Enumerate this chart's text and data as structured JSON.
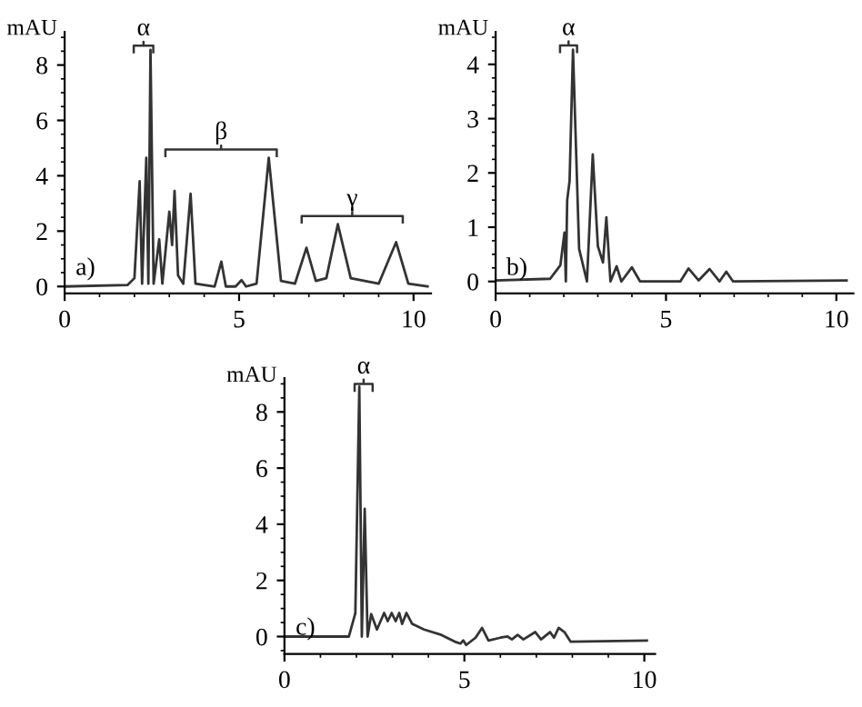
{
  "chart_data": [
    {
      "type": "line",
      "ylabel": "mAU",
      "annotations": [
        "a)",
        {
          "text": "α",
          "x": 2.26,
          "y": 8.7
        },
        "β",
        "γ"
      ],
      "xlim": [
        0,
        10.5
      ],
      "ylim": [
        -0.25,
        9.2
      ],
      "xticks": [
        0,
        5,
        10
      ],
      "yticks": [
        0,
        2,
        4,
        6,
        8
      ],
      "grid": false,
      "legend": false,
      "series": [
        {
          "color": "#333333",
          "x": [
            0,
            1.8,
            2.0,
            2.15,
            2.22,
            2.34,
            2.4,
            2.46,
            2.55,
            2.71,
            2.8,
            3.0,
            3.08,
            3.15,
            3.25,
            3.4,
            3.61,
            3.75,
            4.3,
            4.49,
            4.62,
            4.9,
            5.07,
            5.2,
            5.5,
            5.85,
            6.2,
            6.6,
            6.93,
            7.2,
            7.5,
            7.83,
            8.2,
            9.0,
            9.5,
            9.85,
            10.4
          ],
          "values": [
            0,
            0.05,
            0.3,
            3.8,
            0.1,
            4.65,
            0.1,
            8.55,
            0.1,
            1.7,
            0.1,
            2.7,
            1.5,
            3.45,
            0.4,
            0.1,
            3.35,
            0.1,
            0,
            0.9,
            0,
            0,
            0.23,
            0,
            0.1,
            4.65,
            0.2,
            0.1,
            1.4,
            0.2,
            0.3,
            2.25,
            0.3,
            0.1,
            1.6,
            0.1,
            0
          ]
        }
      ]
    },
    {
      "type": "line",
      "ylabel": "mAU",
      "annotations": [
        "b)",
        {
          "text": "α",
          "x": 2.14,
          "y": 4.35
        }
      ],
      "xlim": [
        0,
        10.5
      ],
      "ylim": [
        -0.22,
        4.6
      ],
      "xticks": [
        0,
        5,
        10
      ],
      "yticks": [
        0,
        1,
        2,
        3,
        4
      ],
      "grid": false,
      "legend": false,
      "series": [
        {
          "color": "#333333",
          "x": [
            0,
            1.6,
            1.9,
            2.02,
            2.06,
            2.1,
            2.17,
            2.27,
            2.45,
            2.68,
            2.85,
            3.0,
            3.15,
            3.25,
            3.37,
            3.55,
            3.69,
            4.0,
            4.24,
            5.42,
            5.66,
            5.96,
            6.28,
            6.57,
            6.77,
            6.97,
            10.3
          ],
          "values": [
            0.02,
            0.05,
            0.3,
            0.9,
            0,
            1.5,
            1.85,
            4.27,
            0.6,
            0,
            2.34,
            0.65,
            0.35,
            1.18,
            0,
            0.28,
            0,
            0.26,
            0,
            0,
            0.24,
            0.02,
            0.23,
            0,
            0.18,
            0,
            0.02
          ]
        }
      ]
    },
    {
      "type": "line",
      "ylabel": "mAU",
      "annotations": [
        "c)",
        {
          "text": "α",
          "x": 2.2,
          "y": 9.0
        }
      ],
      "xlim": [
        0,
        10.3
      ],
      "ylim": [
        -0.62,
        9.2
      ],
      "xticks": [
        0,
        5,
        10
      ],
      "yticks": [
        0,
        2,
        4,
        6,
        8
      ],
      "grid": false,
      "legend": false,
      "series": [
        {
          "color": "#333333",
          "x": [
            0,
            1.79,
            1.97,
            2.08,
            2.15,
            2.23,
            2.31,
            2.41,
            2.57,
            2.77,
            2.87,
            2.98,
            3.09,
            3.19,
            3.27,
            3.39,
            3.55,
            3.88,
            4.36,
            4.77,
            4.89,
            4.97,
            5.05,
            5.31,
            5.49,
            5.67,
            6.0,
            6.2,
            6.32,
            6.48,
            6.64,
            6.97,
            7.13,
            7.38,
            7.49,
            7.62,
            7.78,
            7.95,
            10.07
          ],
          "values": [
            0,
            0,
            0.84,
            8.9,
            0,
            4.55,
            0,
            0.8,
            0.25,
            0.84,
            0.55,
            0.84,
            0.55,
            0.84,
            0.45,
            0.84,
            0.45,
            0.25,
            0.06,
            -0.2,
            -0.25,
            -0.14,
            -0.3,
            -0.04,
            0.31,
            -0.14,
            -0.04,
            0,
            -0.1,
            0.06,
            -0.1,
            0.16,
            -0.1,
            0.16,
            -0.04,
            0.31,
            0.16,
            -0.18,
            -0.14
          ]
        }
      ]
    }
  ]
}
